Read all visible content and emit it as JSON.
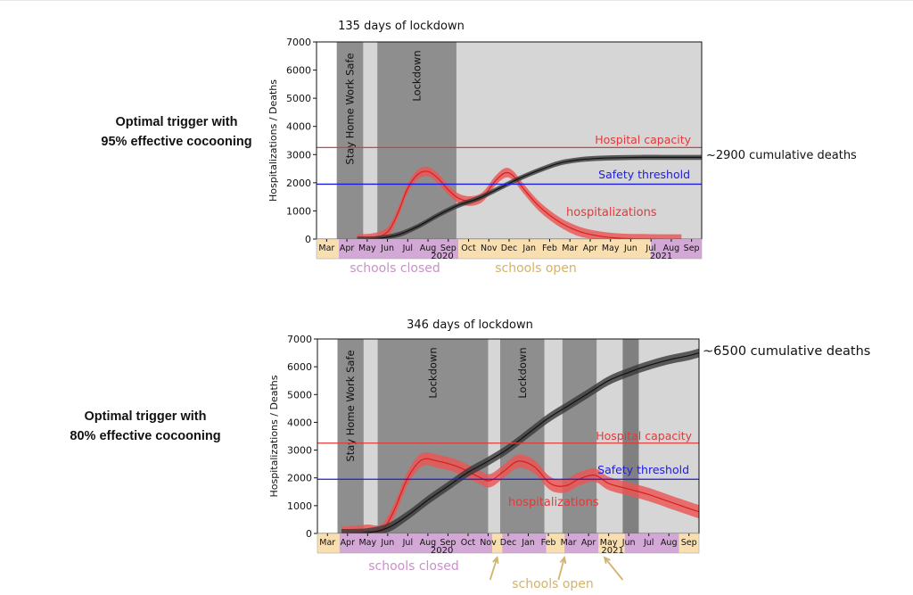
{
  "panels": [
    {
      "side_label_line1": "Optimal trigger with",
      "side_label_line2": "95% effective cocooning",
      "title": "135 days of lockdown",
      "deaths_note": "~2900 cumulative deaths",
      "capacity_label": "Hospital capacity",
      "threshold_label": "Safety threshold",
      "hosp_label": "hospitalizations",
      "schools_closed_label": "schools closed",
      "schools_open_label": "schools open"
    },
    {
      "side_label_line1": "Optimal trigger with",
      "side_label_line2": "80% effective cocooning",
      "title": "346 days of lockdown",
      "deaths_note": "~6500 cumulative deaths",
      "capacity_label": "Hospital capacity",
      "threshold_label": "Safety threshold",
      "hosp_label": "hospitalizations",
      "schools_closed_label": "schools closed",
      "schools_open_label": "schools open"
    }
  ],
  "colors": {
    "capacity_line": "#e03a3a",
    "threshold_line": "#1c1ce0",
    "hosp_band": "#ea5656",
    "hosp_line": "#d81f1f",
    "deaths_band": "#3a3a3a",
    "deaths_line": "#111111",
    "bg_light": "#d6d6d6",
    "bg_dark": "#8e8e8e",
    "bg_darker": "#808080",
    "schools_closed": "#d3a8d6",
    "schools_open": "#f9dfb0",
    "schools_closed_text": "#c992c9",
    "schools_open_text": "#d2b36a"
  },
  "chart_data": [
    {
      "type": "line",
      "title": "135 days of lockdown",
      "ylabel": "Hospitalizations / Deaths",
      "ylim": [
        0,
        7000
      ],
      "yticks": [
        0,
        1000,
        2000,
        3000,
        4000,
        5000,
        6000,
        7000
      ],
      "xlim": [
        0,
        19
      ],
      "month_ticks": [
        "Mar",
        "Apr",
        "May",
        "Jun",
        "Jul",
        "Aug",
        "Sep",
        "Oct",
        "Nov",
        "Dec",
        "Jan",
        "Feb",
        "Mar",
        "Apr",
        "May",
        "Jun",
        "Jul",
        "Aug",
        "Sep"
      ],
      "year_labels": [
        {
          "label": "2020",
          "x": 6.2
        },
        {
          "label": "2021",
          "x": 17.0
        }
      ],
      "hospital_capacity": 3250,
      "safety_threshold": 1950,
      "shaded_periods": [
        {
          "start": 1.0,
          "end": 2.3,
          "shade": "dark",
          "label": "Stay Home Work Safe"
        },
        {
          "start": 3.0,
          "end": 6.9,
          "shade": "dark",
          "label": "Lockdown"
        }
      ],
      "schools": [
        {
          "start": 0,
          "end": 1.1,
          "state": "open"
        },
        {
          "start": 1.1,
          "end": 7.0,
          "state": "closed"
        },
        {
          "start": 7.0,
          "end": 16.5,
          "state": "open"
        },
        {
          "start": 16.5,
          "end": 20,
          "state": "closed"
        },
        {
          "start": 20,
          "end": 22,
          "state": "open"
        }
      ],
      "series": [
        {
          "name": "hospitalizations",
          "kind": "band",
          "x": [
            2.0,
            2.8,
            3.5,
            4.0,
            4.5,
            5.0,
            5.5,
            6.0,
            6.5,
            7.0,
            7.6,
            8.2,
            8.8,
            9.3,
            9.7,
            10.2,
            11.0,
            12.0,
            13.0,
            14.0,
            15.0,
            16.0,
            17.0,
            18.0
          ],
          "y": [
            0,
            40,
            250,
            900,
            1800,
            2300,
            2400,
            2150,
            1750,
            1450,
            1350,
            1500,
            2050,
            2350,
            2250,
            1800,
            1150,
            600,
            260,
            100,
            30,
            10,
            0,
            0
          ],
          "spread": 170
        },
        {
          "name": "cumulative deaths",
          "kind": "band",
          "x": [
            2.0,
            3.0,
            4.0,
            5.0,
            6.0,
            7.0,
            8.0,
            9.0,
            10.0,
            11.0,
            12.0,
            13.0,
            14.0,
            15.0,
            16.0,
            17.0,
            18.0,
            19.0
          ],
          "y": [
            0,
            20,
            150,
            450,
            850,
            1200,
            1450,
            1800,
            2150,
            2450,
            2700,
            2820,
            2870,
            2890,
            2900,
            2900,
            2900,
            2900
          ],
          "spread": 90
        }
      ]
    },
    {
      "type": "line",
      "title": "346 days of lockdown",
      "ylabel": "Hospitalizations / Deaths",
      "ylim": [
        0,
        7000
      ],
      "yticks": [
        0,
        1000,
        2000,
        3000,
        4000,
        5000,
        6000,
        7000
      ],
      "xlim": [
        0,
        19
      ],
      "month_ticks": [
        "Mar",
        "Apr",
        "May",
        "Jun",
        "Jul",
        "Aug",
        "Sep",
        "Oct",
        "Nov",
        "Dec",
        "Jan",
        "Feb",
        "Mar",
        "Apr",
        "May",
        "Jun",
        "Jul",
        "Aug",
        "Sep"
      ],
      "year_labels": [
        {
          "label": "2020",
          "x": 6.2
        },
        {
          "label": "2021",
          "x": 14.7
        }
      ],
      "hospital_capacity": 3250,
      "safety_threshold": 1950,
      "shaded_periods": [
        {
          "start": 1.0,
          "end": 2.3,
          "shade": "dark",
          "label": "Stay Home Work Safe"
        },
        {
          "start": 3.0,
          "end": 8.5,
          "shade": "dark",
          "label": "Lockdown"
        },
        {
          "start": 9.1,
          "end": 11.3,
          "shade": "dark",
          "label": "Lockdown"
        },
        {
          "start": 12.2,
          "end": 13.9,
          "shade": "dark",
          "label": ""
        },
        {
          "start": 15.2,
          "end": 16.0,
          "shade": "darker",
          "label": ""
        }
      ],
      "schools": [
        {
          "start": 0,
          "end": 1.1,
          "state": "open"
        },
        {
          "start": 1.1,
          "end": 8.7,
          "state": "closed"
        },
        {
          "start": 8.7,
          "end": 9.2,
          "state": "open"
        },
        {
          "start": 9.2,
          "end": 11.4,
          "state": "closed"
        },
        {
          "start": 11.4,
          "end": 12.3,
          "state": "open"
        },
        {
          "start": 12.3,
          "end": 14.0,
          "state": "closed"
        },
        {
          "start": 14.0,
          "end": 15.3,
          "state": "open"
        },
        {
          "start": 15.3,
          "end": 18.0,
          "state": "closed"
        },
        {
          "start": 18.0,
          "end": 20,
          "state": "open"
        }
      ],
      "series": [
        {
          "name": "hospitalizations",
          "kind": "band",
          "x": [
            1.2,
            1.8,
            2.5,
            3.2,
            3.8,
            4.5,
            5.2,
            6.0,
            7.0,
            8.0,
            8.6,
            9.3,
            10.0,
            10.8,
            11.5,
            12.0,
            12.5,
            13.0,
            13.8,
            14.5,
            15.5,
            16.5,
            17.5,
            18.5,
            19.0
          ],
          "y": [
            0,
            40,
            80,
            100,
            800,
            2000,
            2650,
            2600,
            2400,
            2050,
            1900,
            2250,
            2600,
            2400,
            1850,
            1700,
            1750,
            1950,
            2100,
            1800,
            1600,
            1400,
            1150,
            900,
            780
          ],
          "spread": 240
        },
        {
          "name": "cumulative deaths",
          "kind": "band",
          "x": [
            1.2,
            2.5,
            3.5,
            4.5,
            5.5,
            6.5,
            7.5,
            8.5,
            9.5,
            10.5,
            11.5,
            12.5,
            13.5,
            14.5,
            15.5,
            16.5,
            17.5,
            18.5,
            19.0
          ],
          "y": [
            0,
            30,
            200,
            650,
            1200,
            1700,
            2200,
            2600,
            3050,
            3600,
            4150,
            4600,
            5050,
            5500,
            5800,
            6050,
            6250,
            6400,
            6500
          ],
          "spread": 160
        }
      ]
    }
  ]
}
